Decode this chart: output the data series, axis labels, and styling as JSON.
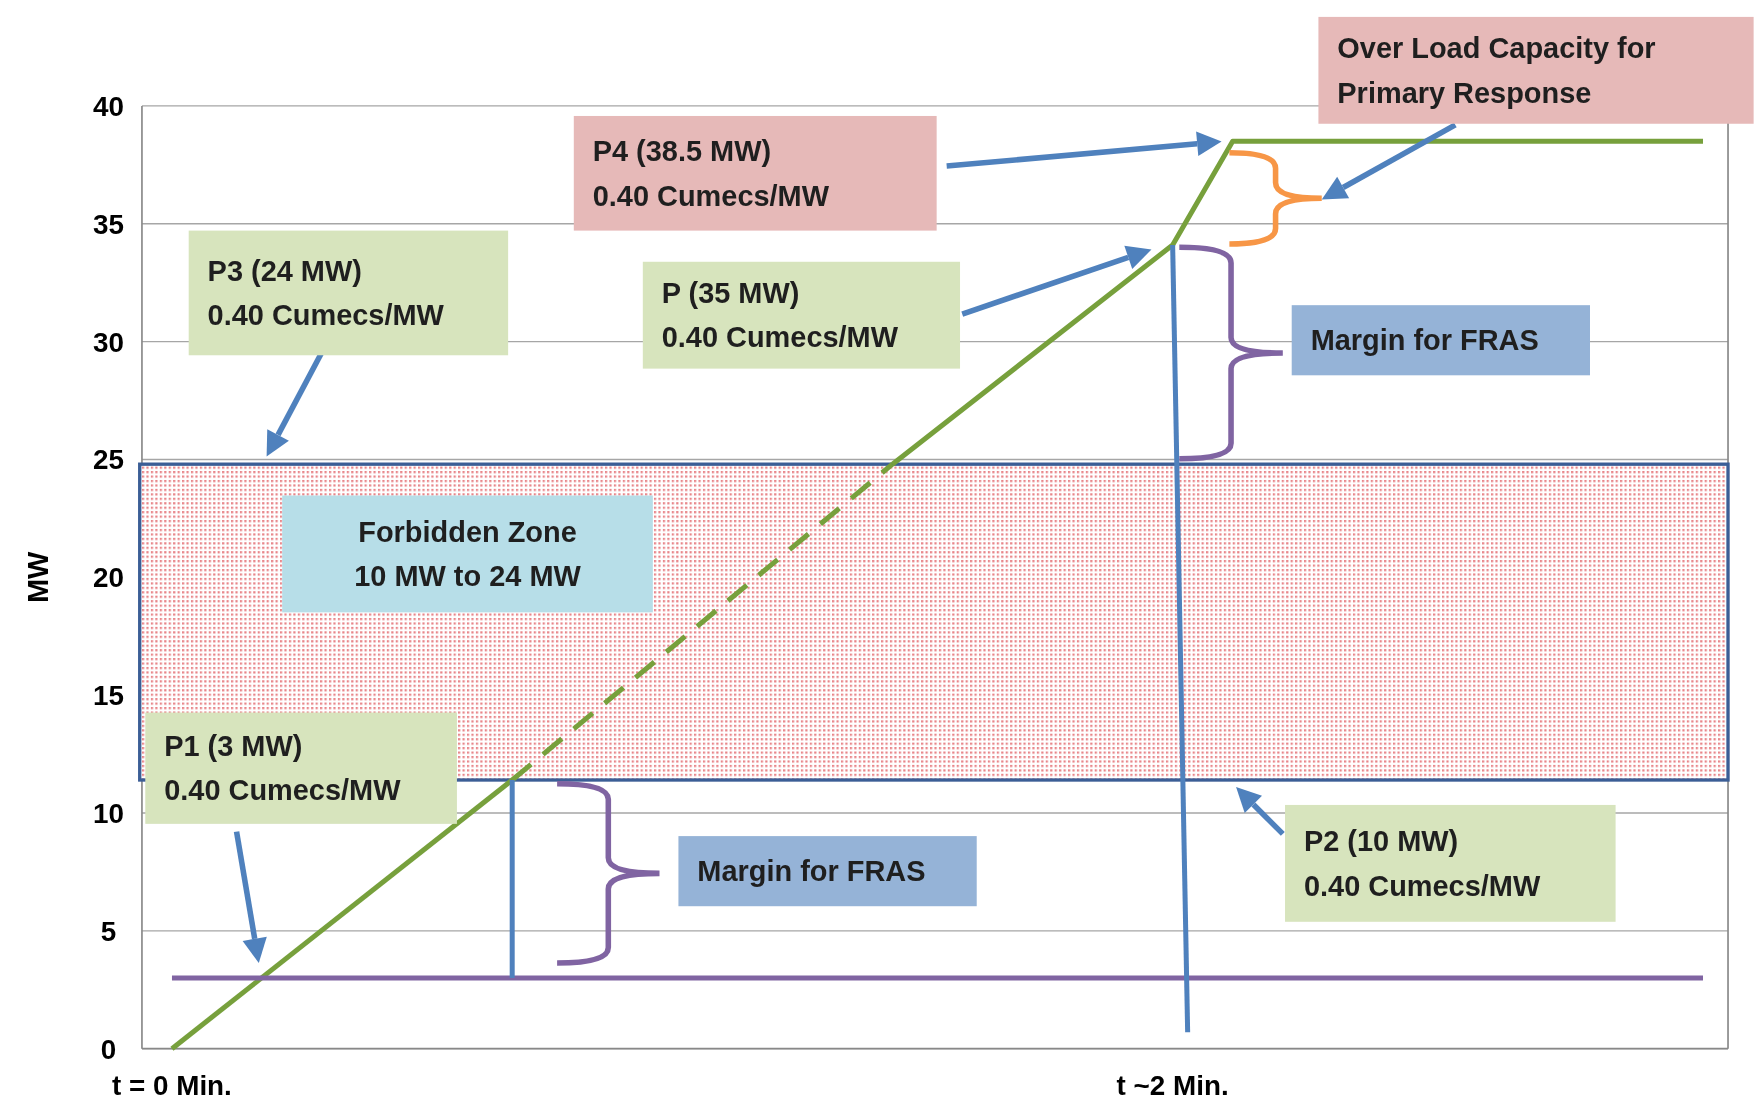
{
  "chart_data": {
    "type": "line",
    "ylabel": "MW",
    "xlim": [
      -0.06,
      3.11
    ],
    "xticks": [
      {
        "value": 0,
        "label": "t = 0 Min."
      },
      {
        "value": 2,
        "label": "t ~2 Min."
      }
    ],
    "ylim": [
      0,
      40
    ],
    "yticks": [
      0,
      5,
      10,
      15,
      20,
      25,
      30,
      35,
      40
    ],
    "grid": "y",
    "series": [
      {
        "color": "#77a03c",
        "x": [
          0,
          0.68
        ],
        "values": [
          0,
          11.4
        ]
      },
      {
        "color": "#77a03c",
        "x": [
          0.68,
          1.44
        ],
        "values": [
          11.4,
          24.8
        ],
        "line_style": "dashed"
      },
      {
        "color": "#77a03c",
        "x": [
          1.44,
          2.0,
          2.12,
          3.06
        ],
        "values": [
          24.8,
          34.1,
          38.5,
          38.5
        ]
      },
      {
        "color": "#8064a2",
        "x": [
          0,
          3.06
        ],
        "values": [
          3,
          3
        ]
      },
      {
        "color": "#4f81bd",
        "x": [
          0.68,
          0.68
        ],
        "values": [
          11.4,
          3
        ]
      },
      {
        "color": "#4f81bd",
        "x": [
          2.0,
          2.03
        ],
        "values": [
          34.1,
          0.7
        ]
      }
    ],
    "bands": [
      {
        "axis": "y",
        "from": 11.4,
        "to": 24.8,
        "label": "Forbidden Zone\n10 MW to 24 MW",
        "color": "#3b5e96"
      }
    ],
    "annotations": [
      "Over Load Capacity for\nPrimary Response",
      "P4  (38.5 MW)\n0.40 Cumecs/MW",
      "P3 (24 MW)\n0.40 Cumecs/MW",
      "P (35 MW)\n0.40 Cumecs/MW",
      "Margin for FRAS",
      "P1 (3 MW)\n0.40 Cumecs/MW",
      "Margin for FRAS",
      "P2 (10 MW)\n0.40 Cumecs/MW"
    ]
  }
}
